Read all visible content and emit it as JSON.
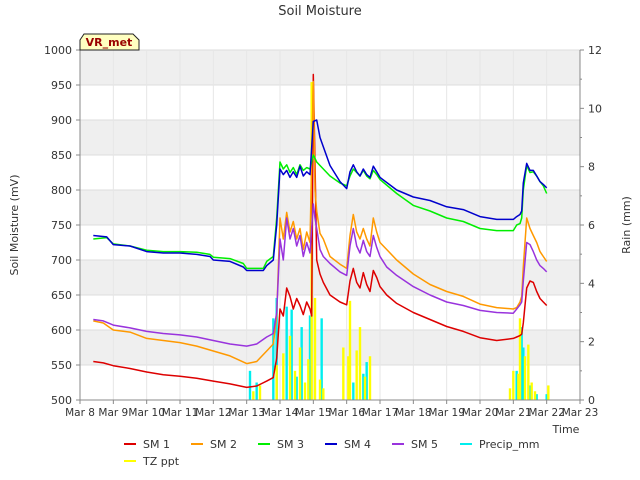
{
  "chart_data": {
    "type": "line",
    "title": "Soil Moisture",
    "station_label": "VR_met",
    "xlabel": "Time",
    "ylabel": "Soil Moisture (mV)",
    "y2label": "Rain (mm)",
    "xlim": [
      8,
      23
    ],
    "ylim": [
      500,
      1000
    ],
    "y2lim": [
      0,
      12
    ],
    "x_tick_values": [
      8,
      9,
      10,
      11,
      12,
      13,
      14,
      15,
      16,
      17,
      18,
      19,
      20,
      21,
      22,
      23
    ],
    "x_tick_labels": [
      "Mar 8",
      "Mar 9",
      "Mar 10",
      "Mar 11",
      "Mar 12",
      "Mar 13",
      "Mar 14",
      "Mar 15",
      "Mar 16",
      "Mar 17",
      "Mar 18",
      "Mar 19",
      "Mar 20",
      "Mar 21",
      "Mar 22",
      "Mar 23"
    ],
    "y_ticks": [
      500,
      550,
      600,
      650,
      700,
      750,
      800,
      850,
      900,
      950,
      1000
    ],
    "y2_ticks": [
      0,
      2,
      4,
      6,
      8,
      10,
      12
    ],
    "grid": true,
    "series": [
      {
        "name": "SM 1",
        "axis": "left",
        "color": "#dd0000",
        "x": [
          8.4,
          8.7,
          9.0,
          9.5,
          10.0,
          10.5,
          11.0,
          11.5,
          12.0,
          12.5,
          13.0,
          13.3,
          13.6,
          13.8,
          13.9,
          14.0,
          14.1,
          14.2,
          14.3,
          14.4,
          14.5,
          14.6,
          14.7,
          14.8,
          14.9,
          14.95,
          15.0,
          15.05,
          15.1,
          15.2,
          15.3,
          15.5,
          15.8,
          16.0,
          16.1,
          16.2,
          16.3,
          16.4,
          16.5,
          16.6,
          16.7,
          16.8,
          16.9,
          17.0,
          17.2,
          17.5,
          18.0,
          18.5,
          19.0,
          19.5,
          20.0,
          20.5,
          21.0,
          21.1,
          21.2,
          21.25,
          21.3,
          21.4,
          21.5,
          21.6,
          21.7,
          21.8,
          21.9,
          22.0
        ],
        "y": [
          555,
          553,
          549,
          545,
          540,
          536,
          534,
          531,
          527,
          523,
          518,
          520,
          527,
          532,
          560,
          630,
          620,
          660,
          648,
          630,
          645,
          635,
          622,
          640,
          630,
          620,
          965,
          840,
          700,
          680,
          668,
          650,
          640,
          636,
          670,
          688,
          668,
          660,
          682,
          665,
          655,
          685,
          675,
          662,
          650,
          638,
          625,
          615,
          605,
          598,
          589,
          585,
          588,
          590,
          592,
          594,
          610,
          660,
          670,
          668,
          655,
          645,
          640,
          635
        ]
      },
      {
        "name": "SM 2",
        "axis": "left",
        "color": "#ff9900",
        "x": [
          8.4,
          8.7,
          9.0,
          9.5,
          10.0,
          10.5,
          11.0,
          11.5,
          12.0,
          12.5,
          13.0,
          13.3,
          13.6,
          13.8,
          13.9,
          14.0,
          14.1,
          14.2,
          14.3,
          14.4,
          14.5,
          14.6,
          14.7,
          14.8,
          14.9,
          15.0,
          15.05,
          15.1,
          15.2,
          15.3,
          15.5,
          15.8,
          16.0,
          16.1,
          16.2,
          16.3,
          16.4,
          16.5,
          16.6,
          16.7,
          16.8,
          16.9,
          17.0,
          17.2,
          17.5,
          18.0,
          18.5,
          19.0,
          19.5,
          20.0,
          20.5,
          21.0,
          21.1,
          21.2,
          21.25,
          21.3,
          21.4,
          21.5,
          21.6,
          21.7,
          21.8,
          21.9,
          22.0
        ],
        "y": [
          613,
          610,
          600,
          597,
          588,
          585,
          582,
          577,
          570,
          563,
          552,
          555,
          570,
          580,
          620,
          760,
          730,
          768,
          740,
          755,
          730,
          745,
          715,
          740,
          725,
          955,
          800,
          770,
          738,
          730,
          705,
          694,
          688,
          735,
          765,
          740,
          730,
          745,
          730,
          720,
          760,
          740,
          725,
          715,
          700,
          680,
          665,
          655,
          648,
          637,
          632,
          630,
          632,
          640,
          648,
          690,
          760,
          745,
          735,
          725,
          712,
          705,
          698
        ]
      },
      {
        "name": "SM 3",
        "axis": "left",
        "color": "#00ee00",
        "x": [
          8.4,
          8.8,
          9.0,
          9.5,
          10.0,
          10.5,
          11.0,
          11.5,
          11.9,
          12.0,
          12.5,
          12.9,
          13.0,
          13.5,
          13.6,
          13.8,
          13.9,
          14.0,
          14.1,
          14.2,
          14.3,
          14.4,
          14.5,
          14.6,
          14.7,
          14.8,
          14.9,
          15.0,
          15.1,
          15.2,
          15.5,
          15.8,
          16.0,
          16.1,
          16.2,
          16.3,
          16.4,
          16.5,
          16.6,
          16.7,
          16.8,
          16.9,
          17.0,
          17.5,
          18.0,
          18.5,
          19.0,
          19.5,
          20.0,
          20.5,
          21.0,
          21.1,
          21.2,
          21.25,
          21.3,
          21.4,
          21.5,
          21.6,
          21.7,
          21.8,
          21.9,
          22.0
        ],
        "y": [
          730,
          732,
          723,
          720,
          714,
          712,
          712,
          711,
          708,
          704,
          702,
          695,
          688,
          688,
          698,
          705,
          760,
          840,
          830,
          836,
          825,
          832,
          822,
          836,
          828,
          832,
          830,
          850,
          840,
          835,
          820,
          810,
          806,
          820,
          830,
          825,
          820,
          828,
          820,
          816,
          828,
          822,
          815,
          795,
          778,
          770,
          760,
          755,
          745,
          742,
          742,
          750,
          752,
          760,
          800,
          835,
          825,
          826,
          820,
          812,
          806,
          795
        ]
      },
      {
        "name": "SM 4",
        "axis": "left",
        "color": "#0000cc",
        "x": [
          8.4,
          8.8,
          9.0,
          9.5,
          10.0,
          10.5,
          11.0,
          11.5,
          11.9,
          12.0,
          12.5,
          12.9,
          13.0,
          13.5,
          13.6,
          13.8,
          13.9,
          14.0,
          14.1,
          14.2,
          14.3,
          14.4,
          14.5,
          14.6,
          14.7,
          14.8,
          14.9,
          15.0,
          15.1,
          15.2,
          15.5,
          15.8,
          16.0,
          16.1,
          16.2,
          16.3,
          16.4,
          16.5,
          16.6,
          16.7,
          16.8,
          16.9,
          17.0,
          17.5,
          18.0,
          18.5,
          19.0,
          19.5,
          20.0,
          20.5,
          21.0,
          21.1,
          21.2,
          21.25,
          21.3,
          21.4,
          21.5,
          21.6,
          21.7,
          21.8,
          21.9,
          22.0
        ],
        "y": [
          735,
          733,
          722,
          720,
          712,
          710,
          710,
          708,
          705,
          700,
          698,
          690,
          685,
          685,
          692,
          700,
          750,
          830,
          822,
          828,
          818,
          826,
          818,
          834,
          820,
          826,
          822,
          898,
          900,
          875,
          835,
          812,
          802,
          826,
          836,
          826,
          820,
          830,
          822,
          818,
          834,
          826,
          818,
          800,
          790,
          785,
          776,
          772,
          762,
          758,
          758,
          762,
          765,
          770,
          810,
          838,
          828,
          828,
          820,
          812,
          808,
          803
        ]
      },
      {
        "name": "SM 5",
        "axis": "left",
        "color": "#9933dd",
        "x": [
          8.4,
          8.7,
          9.0,
          9.5,
          10.0,
          10.5,
          11.0,
          11.5,
          12.0,
          12.5,
          13.0,
          13.3,
          13.6,
          13.8,
          13.9,
          14.0,
          14.1,
          14.2,
          14.3,
          14.4,
          14.5,
          14.6,
          14.7,
          14.8,
          14.9,
          15.0,
          15.05,
          15.1,
          15.2,
          15.3,
          15.5,
          15.8,
          16.0,
          16.1,
          16.2,
          16.3,
          16.4,
          16.5,
          16.6,
          16.7,
          16.8,
          16.9,
          17.0,
          17.2,
          17.5,
          18.0,
          18.5,
          19.0,
          19.5,
          20.0,
          20.5,
          21.0,
          21.1,
          21.2,
          21.25,
          21.3,
          21.4,
          21.5,
          21.6,
          21.7,
          21.8,
          21.9,
          22.0
        ],
        "y": [
          615,
          613,
          607,
          603,
          598,
          595,
          593,
          590,
          585,
          580,
          577,
          580,
          590,
          595,
          625,
          730,
          700,
          760,
          730,
          745,
          720,
          735,
          705,
          725,
          710,
          780,
          760,
          745,
          715,
          705,
          695,
          683,
          678,
          720,
          745,
          720,
          710,
          728,
          712,
          705,
          735,
          718,
          705,
          690,
          678,
          662,
          650,
          640,
          635,
          628,
          625,
          624,
          630,
          636,
          640,
          670,
          725,
          722,
          712,
          700,
          692,
          688,
          683
        ]
      },
      {
        "name": "Precip_mm",
        "axis": "right",
        "color": "#00eeee",
        "style": "bars",
        "x": [
          13.1,
          13.3,
          13.8,
          13.9,
          14.2,
          14.35,
          14.5,
          14.65,
          14.9,
          15.25,
          16.2,
          16.5,
          16.6,
          21.1,
          21.25,
          21.3,
          21.5,
          21.7,
          22.0
        ],
        "y": [
          1.0,
          0.6,
          2.8,
          3.5,
          3.2,
          3.1,
          0.8,
          2.5,
          2.9,
          2.8,
          0.6,
          0.9,
          1.3,
          1.0,
          2.5,
          1.8,
          0.5,
          0.2,
          0.2
        ]
      },
      {
        "name": "TZ ppt",
        "axis": "right",
        "color": "#ffff00",
        "style": "bars",
        "x": [
          13.2,
          13.4,
          13.9,
          14.1,
          14.3,
          14.45,
          14.6,
          14.75,
          14.85,
          14.95,
          15.05,
          15.2,
          15.3,
          15.9,
          16.05,
          16.1,
          16.3,
          16.4,
          16.55,
          16.7,
          20.9,
          21.0,
          21.15,
          21.2,
          21.35,
          21.45,
          21.55,
          21.65,
          22.05
        ],
        "y": [
          0.3,
          0.5,
          1.2,
          1.6,
          2.2,
          1.0,
          1.8,
          0.6,
          1.4,
          10.9,
          3.5,
          0.7,
          0.4,
          1.8,
          1.5,
          3.4,
          1.7,
          2.5,
          0.8,
          1.5,
          0.4,
          1.0,
          0.9,
          2.8,
          1.5,
          1.9,
          0.6,
          0.3,
          0.5
        ]
      }
    ]
  }
}
